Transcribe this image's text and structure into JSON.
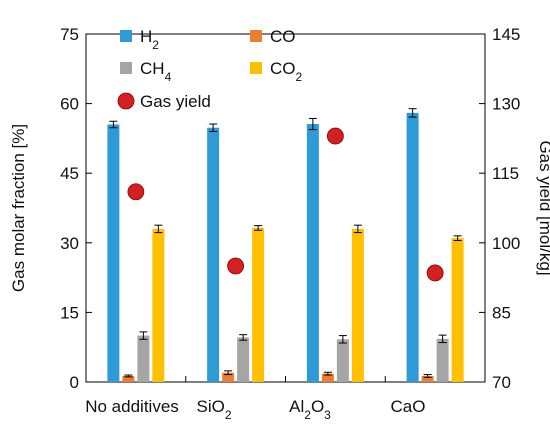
{
  "chart_data": {
    "type": "bar",
    "categories": [
      {
        "base": "No additives"
      },
      {
        "base": "SiO",
        "sub": "2"
      },
      {
        "base": "Al",
        "sub": "2",
        "base2": "O",
        "sub2": "3"
      },
      {
        "base": "CaO"
      }
    ],
    "series": [
      {
        "label_base": "H",
        "label_sub": "2",
        "color": "#2E9BD6",
        "values": [
          55.5,
          54.8,
          55.6,
          58.0
        ],
        "errors": [
          0.7,
          0.8,
          1.2,
          0.9
        ]
      },
      {
        "label_base": "CO",
        "label_sub": "",
        "color": "#ED7D31",
        "values": [
          1.3,
          2.0,
          1.8,
          1.3
        ],
        "errors": [
          0.2,
          0.4,
          0.3,
          0.3
        ]
      },
      {
        "label_base": "CH",
        "label_sub": "4",
        "color": "#A5A5A5",
        "values": [
          10.0,
          9.6,
          9.2,
          9.3
        ],
        "errors": [
          0.8,
          0.6,
          0.8,
          0.8
        ]
      },
      {
        "label_base": "CO",
        "label_sub": "2",
        "color": "#FFC000",
        "values": [
          33.0,
          33.2,
          33.0,
          31.0
        ],
        "errors": [
          0.8,
          0.5,
          0.8,
          0.5
        ]
      }
    ],
    "scatter": {
      "label": "Gas yield",
      "color": "#D42020",
      "values": [
        111.0,
        95.0,
        123.0,
        93.5
      ]
    },
    "y_left": {
      "label": "Gas molar fraction [%]",
      "min": 0,
      "max": 75,
      "ticks": [
        0,
        15,
        30,
        45,
        60,
        75
      ]
    },
    "y_right": {
      "label": "Gas yield [mol/kg]",
      "min": 70,
      "max": 145,
      "ticks": [
        70,
        85,
        100,
        115,
        130,
        145
      ]
    },
    "grid": false,
    "legend_position": "top"
  }
}
